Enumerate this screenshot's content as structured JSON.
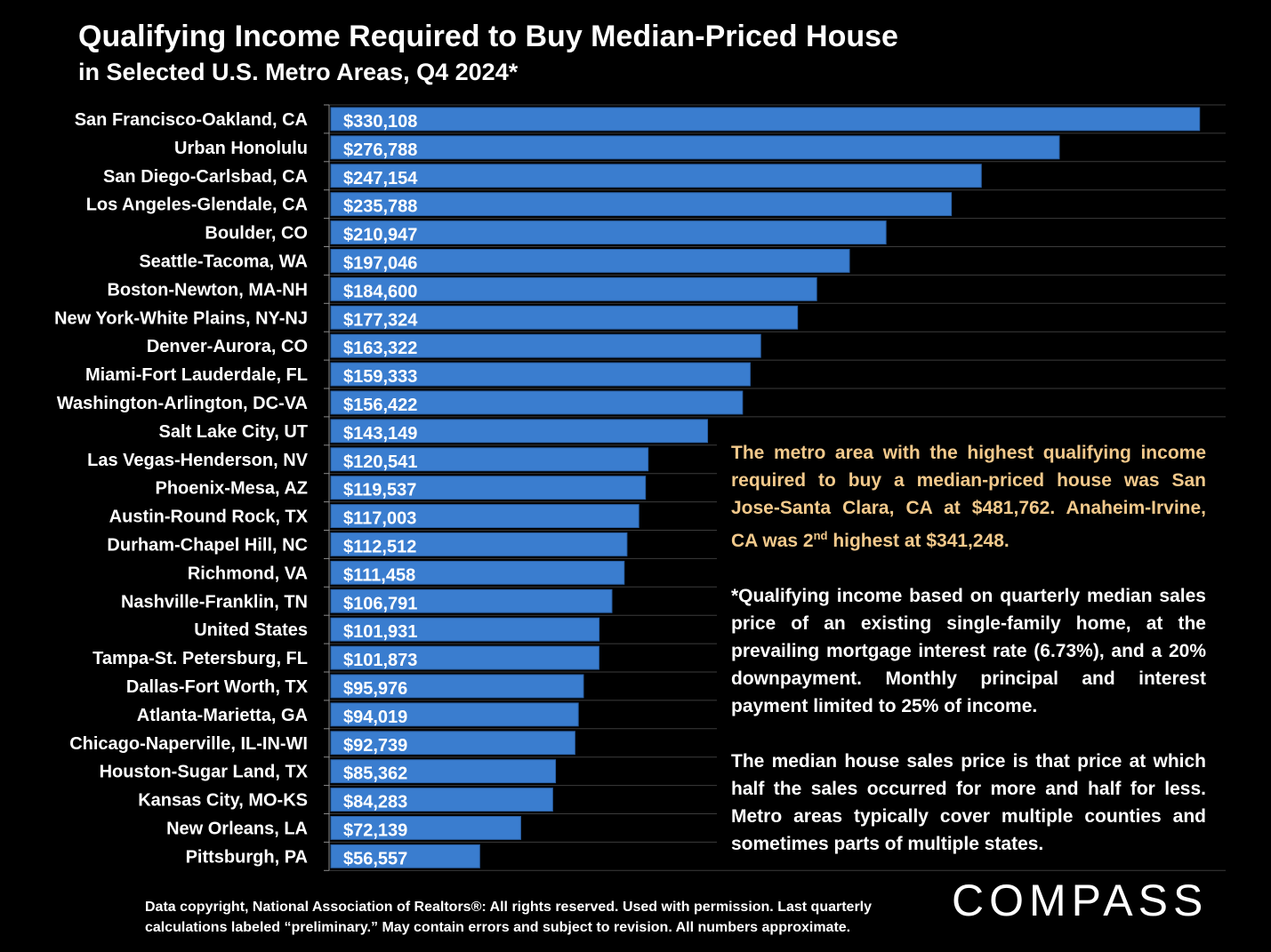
{
  "colors": {
    "bar": "#3a7dcf",
    "bar_edge": "#2a5fa3",
    "grid": "#3c3c3c",
    "axis": "#8a8a8a",
    "highlight_text": "#f2c98b",
    "background": "#000000"
  },
  "chart_data": {
    "type": "bar",
    "orientation": "horizontal",
    "title": "Qualifying Income Required to Buy Median-Priced House",
    "subtitle": "in Selected U.S. Metro Areas, Q4 2024*",
    "xlabel": "",
    "ylabel": "",
    "xlim": [
      0,
      340000
    ],
    "grid": true,
    "categories": [
      "San Francisco-Oakland, CA",
      "Urban Honolulu",
      "San Diego-Carlsbad, CA",
      "Los Angeles-Glendale, CA",
      "Boulder, CO",
      "Seattle-Tacoma, WA",
      "Boston-Newton, MA-NH",
      "New York-White Plains, NY-NJ",
      "Denver-Aurora, CO",
      "Miami-Fort Lauderdale, FL",
      "Washington-Arlington, DC-VA",
      "Salt Lake City, UT",
      "Las Vegas-Henderson, NV",
      "Phoenix-Mesa, AZ",
      "Austin-Round Rock, TX",
      "Durham-Chapel Hill, NC",
      "Richmond, VA",
      "Nashville-Franklin, TN",
      "United States",
      "Tampa-St. Petersburg, FL",
      "Dallas-Fort Worth, TX",
      "Atlanta-Marietta, GA",
      "Chicago-Naperville, IL-IN-WI",
      "Houston-Sugar Land, TX",
      "Kansas City, MO-KS",
      "New Orleans, LA",
      "Pittsburgh, PA"
    ],
    "values": [
      330108,
      276788,
      247154,
      235788,
      210947,
      197046,
      184600,
      177324,
      163322,
      159333,
      156422,
      143149,
      120541,
      119537,
      117003,
      112512,
      111458,
      106791,
      101931,
      101873,
      95976,
      94019,
      92739,
      85362,
      84283,
      72139,
      56557
    ],
    "value_labels": [
      "$330,108",
      "$276,788",
      "$247,154",
      "$235,788",
      "$210,947",
      "$197,046",
      "$184,600",
      "$177,324",
      "$163,322",
      "$159,333",
      "$156,422",
      "$143,149",
      "$120,541",
      "$119,537",
      "$117,003",
      "$112,512",
      "$111,458",
      "$106,791",
      "$101,931",
      "$101,873",
      "$95,976",
      "$94,019",
      "$92,739",
      "$85,362",
      "$84,283",
      "$72,139",
      "$56,557"
    ]
  },
  "notes": {
    "highlight_pre": "The metro area with the highest qualifying income required to buy a median-priced house was San Jose-Santa Clara, CA at $481,762. Anaheim-Irvine, CA was 2",
    "highlight_sup": "nd",
    "highlight_post": " highest at $341,248.",
    "footnote": "*Qualifying income based on quarterly median sales price of an existing single-family home, at the prevailing mortgage interest rate (6.73%), and a 20% downpayment. Monthly principal and interest payment limited to 25% of income.",
    "definition": "The median house sales price is that price at which half the sales occurred for more and half for less. Metro areas typically cover multiple counties and sometimes parts of multiple states."
  },
  "footer": {
    "line1": "Data copyright, National Association of Realtors®: All rights reserved. Used with permission. Last quarterly",
    "line2": "calculations labeled “preliminary.” May contain errors and subject to revision. All numbers approximate."
  },
  "logo": "COMPASS"
}
